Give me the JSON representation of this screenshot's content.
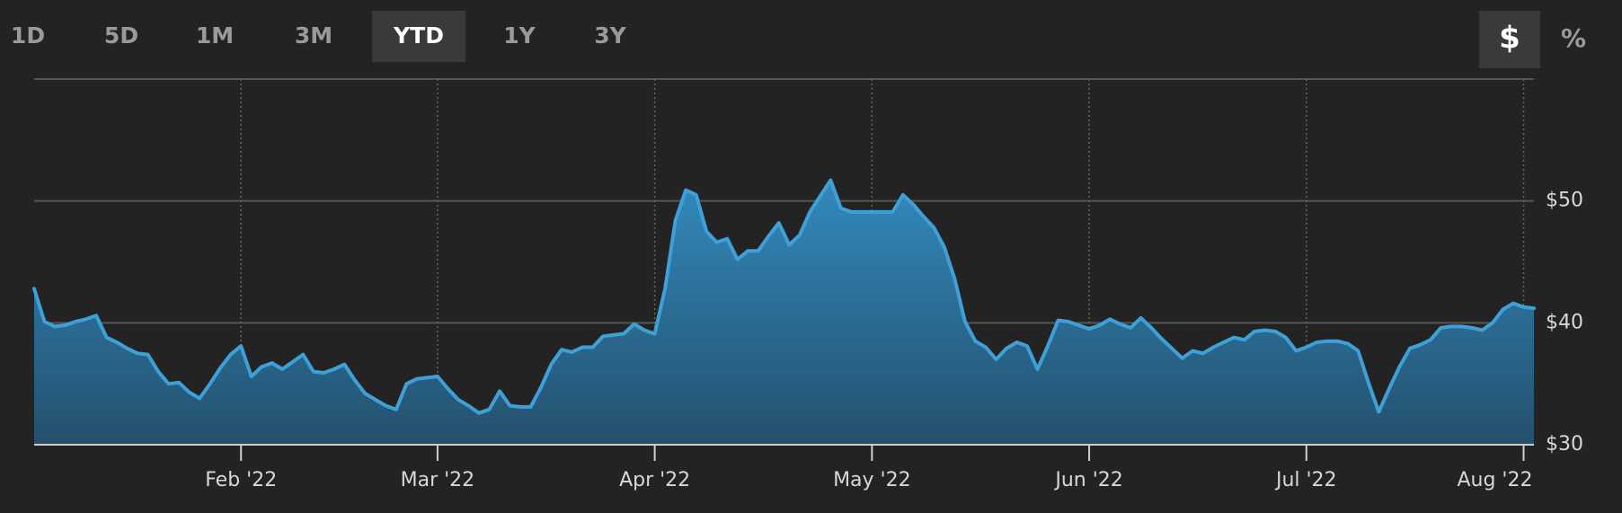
{
  "ranges": [
    "1D",
    "5D",
    "1M",
    "3M",
    "YTD",
    "1Y",
    "3Y"
  ],
  "active_range": "YTD",
  "units": [
    "$",
    "%"
  ],
  "active_unit": "$",
  "chart_data": {
    "type": "area",
    "color": "#3fa0d8",
    "categories": [
      null,
      null,
      null,
      null,
      null,
      null,
      null,
      null,
      null,
      null,
      null,
      null,
      null,
      null,
      null,
      null,
      null,
      null,
      null,
      null,
      "Feb '22",
      null,
      null,
      null,
      null,
      null,
      null,
      null,
      null,
      null,
      null,
      null,
      null,
      null,
      null,
      null,
      null,
      null,
      null,
      "Mar '22",
      null,
      null,
      null,
      null,
      null,
      null,
      null,
      null,
      null,
      null,
      null,
      null,
      null,
      null,
      null,
      null,
      null,
      null,
      null,
      null,
      "Apr '22",
      null,
      null,
      null,
      null,
      null,
      null,
      null,
      null,
      null,
      null,
      null,
      null,
      null,
      null,
      null,
      null,
      null,
      null,
      null,
      null,
      "May '22",
      null,
      null,
      null,
      null,
      null,
      null,
      null,
      null,
      null,
      null,
      null,
      null,
      null,
      null,
      null,
      null,
      null,
      null,
      null,
      null,
      "Jun '22",
      null,
      null,
      null,
      null,
      null,
      null,
      null,
      null,
      null,
      null,
      null,
      null,
      null,
      null,
      null,
      null,
      null,
      null,
      null,
      null,
      "Jul '22",
      null,
      null,
      null,
      null,
      null,
      null,
      null,
      null,
      null,
      null,
      null,
      null,
      null,
      null,
      null,
      null,
      null,
      null,
      null,
      null,
      "Aug '22",
      null
    ],
    "values": [
      42.8,
      40.1,
      39.7,
      39.8,
      40.1,
      40.3,
      40.6,
      38.8,
      38.4,
      37.9,
      37.5,
      37.4,
      36.0,
      35.0,
      35.1,
      34.3,
      33.8,
      35.0,
      36.3,
      37.4,
      38.1,
      35.6,
      36.4,
      36.7,
      36.2,
      36.8,
      37.4,
      36.0,
      35.9,
      36.2,
      36.6,
      35.3,
      34.2,
      33.7,
      33.2,
      32.9,
      35.0,
      35.4,
      35.5,
      35.6,
      34.6,
      33.7,
      33.2,
      32.6,
      32.9,
      34.4,
      33.2,
      33.1,
      33.1,
      34.7,
      36.6,
      37.8,
      37.6,
      38.0,
      38.0,
      38.9,
      39.0,
      39.1,
      39.9,
      39.4,
      39.1,
      42.8,
      48.4,
      50.9,
      50.5,
      47.5,
      46.6,
      46.9,
      45.2,
      45.9,
      45.9,
      47.1,
      48.2,
      46.4,
      47.2,
      49.1,
      50.4,
      51.7,
      49.4,
      49.1,
      49.1,
      49.1,
      49.1,
      49.1,
      50.5,
      49.7,
      48.7,
      47.8,
      46.2,
      43.6,
      40.1,
      38.5,
      38.0,
      37.0,
      37.9,
      38.4,
      38.1,
      36.2,
      38.1,
      40.2,
      40.1,
      39.8,
      39.5,
      39.8,
      40.3,
      39.9,
      39.6,
      40.4,
      39.6,
      38.7,
      37.9,
      37.1,
      37.7,
      37.5,
      38.0,
      38.4,
      38.8,
      38.6,
      39.3,
      39.4,
      39.3,
      38.8,
      37.7,
      38.0,
      38.4,
      38.5,
      38.5,
      38.3,
      37.7,
      35.1,
      32.7,
      34.6,
      36.4,
      37.9,
      38.2,
      38.6,
      39.6,
      39.7,
      39.7,
      39.6,
      39.4,
      40.0,
      41.1,
      41.6,
      41.3,
      41.2
    ],
    "ylim": [
      30,
      60
    ],
    "yticks": [
      {
        "value": 30,
        "label": "$30"
      },
      {
        "value": 40,
        "label": "$40"
      },
      {
        "value": 50,
        "label": "$50"
      }
    ],
    "grid": true
  }
}
